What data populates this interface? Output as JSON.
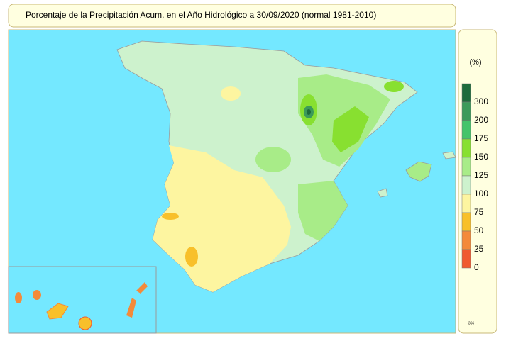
{
  "header": {
    "title": "Porcentaje de la Precipitación Acum. en el Año Hidrológico a 30/09/2020  (normal 1981-2010)"
  },
  "legend": {
    "unit": "(%)",
    "items": [
      {
        "label": 300,
        "color": "#1e6b3c"
      },
      {
        "label": 200,
        "color": "#3c9a5a"
      },
      {
        "label": 175,
        "color": "#44c46a"
      },
      {
        "label": 150,
        "color": "#88e030"
      },
      {
        "label": 125,
        "color": "#a8ec88"
      },
      {
        "label": 100,
        "color": "#cdf2cd"
      },
      {
        "label": 75,
        "color": "#fdf5a0"
      },
      {
        "label": 50,
        "color": "#f8c02a"
      },
      {
        "label": 25,
        "color": "#f48a3a"
      },
      {
        "label": 0,
        "color": "#f05a30"
      }
    ],
    "code": "366"
  }
}
